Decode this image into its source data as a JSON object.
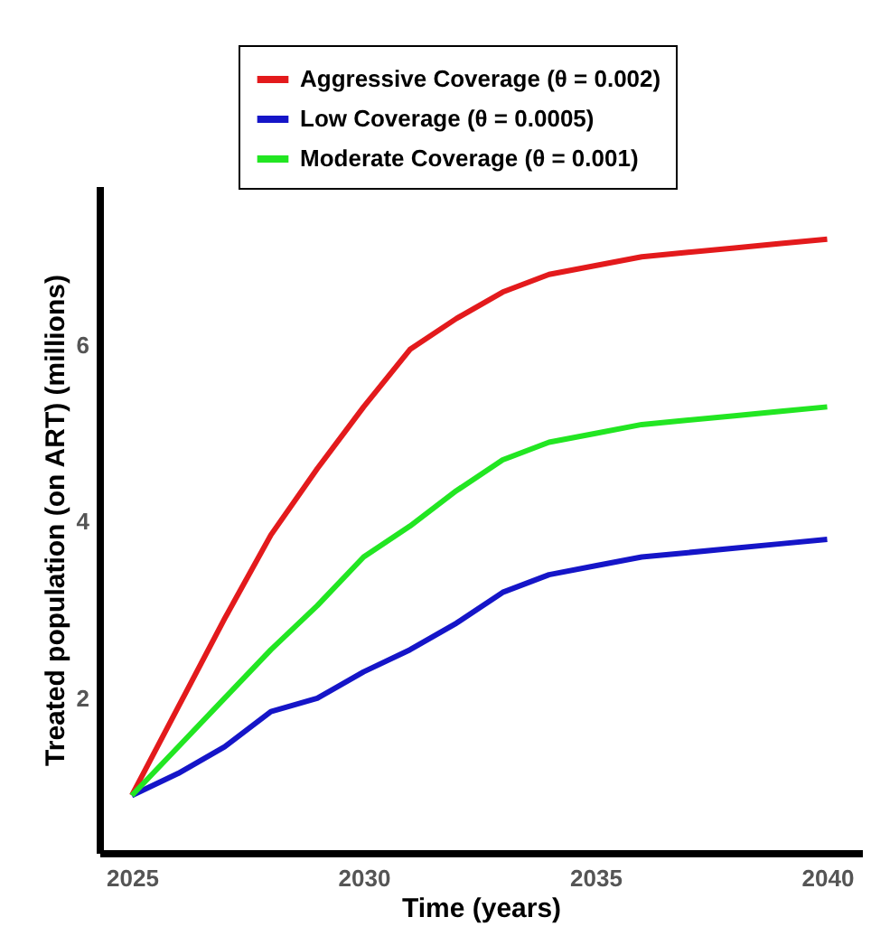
{
  "chart_data": {
    "type": "line",
    "xlabel": "Time (years)",
    "ylabel": "Treated population (on ART) (millions)",
    "x": [
      2025,
      2026,
      2027,
      2028,
      2029,
      2030,
      2031,
      2032,
      2033,
      2034,
      2035,
      2036,
      2037,
      2038,
      2039,
      2040
    ],
    "series": [
      {
        "name": "Aggressive Coverage (θ = 0.002)",
        "color": "#e31a1c",
        "values": [
          0.9,
          1.9,
          2.9,
          3.85,
          4.6,
          5.3,
          5.95,
          6.3,
          6.6,
          6.8,
          6.9,
          7.0,
          7.05,
          7.1,
          7.15,
          7.2
        ]
      },
      {
        "name": "Low Coverage (θ = 0.0005)",
        "color": "#1515c8",
        "values": [
          0.9,
          1.15,
          1.45,
          1.85,
          2.0,
          2.3,
          2.55,
          2.85,
          3.2,
          3.4,
          3.5,
          3.6,
          3.65,
          3.7,
          3.75,
          3.8
        ]
      },
      {
        "name": "Moderate Coverage (θ = 0.001)",
        "color": "#22e622",
        "values": [
          0.9,
          1.45,
          2.0,
          2.55,
          3.05,
          3.6,
          3.95,
          4.35,
          4.7,
          4.9,
          5.0,
          5.1,
          5.15,
          5.2,
          5.25,
          5.3
        ]
      }
    ],
    "xlim": [
      2024.3,
      2040.75
    ],
    "xticks": [
      2025,
      2030,
      2035,
      2040
    ],
    "ylim": [
      0.25,
      7.8
    ],
    "yticks": [
      2,
      4,
      6
    ],
    "grid": false,
    "legend": "top",
    "marker": "none",
    "line_style": "solid"
  }
}
